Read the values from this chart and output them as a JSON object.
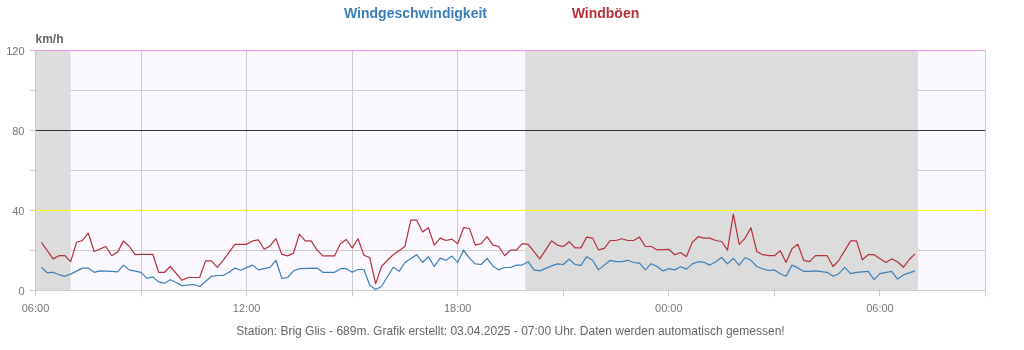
{
  "chart_data": {
    "type": "line",
    "ylabel": "km/h",
    "annotations": [
      "Station: Brig Glis - 689m. Grafik erstellt: 03.04.2025 - 07:00 Uhr. Daten werden automatisch gemessen!"
    ],
    "xlim": [
      "2025-04-02T06:00",
      "2025-04-03T09:00"
    ],
    "xticks": [
      {
        "value": "2025-04-02T06:00",
        "label": "06:00"
      },
      {
        "value": "2025-04-02T09:00",
        "label": null
      },
      {
        "value": "2025-04-02T12:00",
        "label": "12:00"
      },
      {
        "value": "2025-04-02T15:00",
        "label": null
      },
      {
        "value": "2025-04-02T18:00",
        "label": "18:00"
      },
      {
        "value": "2025-04-02T21:00",
        "label": null
      },
      {
        "value": "2025-04-03T00:00",
        "label": "00:00"
      },
      {
        "value": "2025-04-03T03:00",
        "label": null
      },
      {
        "value": "2025-04-03T06:00",
        "label": "06:00"
      },
      {
        "value": "2025-04-03T09:00",
        "label": null
      }
    ],
    "ylim": [
      0,
      120
    ],
    "yticks": [
      0,
      {
        "value": 20,
        "label": null
      },
      40,
      {
        "value": 60,
        "label": null
      },
      80,
      {
        "value": 100,
        "label": null
      },
      120
    ],
    "grid": true,
    "line_style": "solid",
    "bands": [
      {
        "axis": "x",
        "from": "2025-04-02T06:00",
        "to": "2025-04-02T07:00",
        "color": "#dcdcdc"
      },
      {
        "axis": "x",
        "from": "2025-04-02T19:55",
        "to": "2025-04-03T07:05",
        "color": "#dcdcdc"
      }
    ],
    "ref_lines": [
      {
        "axis": "y",
        "value": 40,
        "color": "#ffff00"
      },
      {
        "axis": "y",
        "value": 80,
        "color": "#333333"
      },
      {
        "axis": "y",
        "value": 120,
        "color": "#ff66ff"
      }
    ],
    "series": [
      {
        "name": "Windgeschwindigkeit",
        "color": "#3a7fba",
        "x": [
          "2025-04-02T06:10",
          "2025-04-02T06:20",
          "2025-04-02T06:30",
          "2025-04-02T06:40",
          "2025-04-02T06:50",
          "2025-04-02T07:00",
          "2025-04-02T07:20",
          "2025-04-02T07:30",
          "2025-04-02T07:40",
          "2025-04-02T07:50",
          "2025-04-02T08:10",
          "2025-04-02T08:20",
          "2025-04-02T08:30",
          "2025-04-02T08:40",
          "2025-04-02T09:00",
          "2025-04-02T09:10",
          "2025-04-02T09:20",
          "2025-04-02T09:30",
          "2025-04-02T09:40",
          "2025-04-02T09:50",
          "2025-04-02T10:00",
          "2025-04-02T10:10",
          "2025-04-02T10:30",
          "2025-04-02T10:40",
          "2025-04-02T11:00",
          "2025-04-02T11:10",
          "2025-04-02T11:20",
          "2025-04-02T11:30",
          "2025-04-02T11:40",
          "2025-04-02T11:50",
          "2025-04-02T12:10",
          "2025-04-02T12:20",
          "2025-04-02T12:40",
          "2025-04-02T12:50",
          "2025-04-02T13:00",
          "2025-04-02T13:10",
          "2025-04-02T13:20",
          "2025-04-02T13:30",
          "2025-04-02T14:00",
          "2025-04-02T14:10",
          "2025-04-02T14:30",
          "2025-04-02T14:40",
          "2025-04-02T14:50",
          "2025-04-02T15:00",
          "2025-04-02T15:10",
          "2025-04-02T15:20",
          "2025-04-02T15:30",
          "2025-04-02T15:40",
          "2025-04-02T15:50",
          "2025-04-02T16:10",
          "2025-04-02T16:20",
          "2025-04-02T16:30",
          "2025-04-02T16:50",
          "2025-04-02T17:00",
          "2025-04-02T17:10",
          "2025-04-02T17:20",
          "2025-04-02T17:30",
          "2025-04-02T17:40",
          "2025-04-02T17:50",
          "2025-04-02T18:00",
          "2025-04-02T18:10",
          "2025-04-02T18:20",
          "2025-04-02T18:30",
          "2025-04-02T18:40",
          "2025-04-02T18:50",
          "2025-04-02T19:00",
          "2025-04-02T19:10",
          "2025-04-02T19:20",
          "2025-04-02T19:30",
          "2025-04-02T19:40",
          "2025-04-02T19:50",
          "2025-04-02T20:00",
          "2025-04-02T20:10",
          "2025-04-02T20:20",
          "2025-04-02T20:40",
          "2025-04-02T20:50",
          "2025-04-02T21:00",
          "2025-04-02T21:10",
          "2025-04-02T21:20",
          "2025-04-02T21:30",
          "2025-04-02T21:40",
          "2025-04-02T21:50",
          "2025-04-02T22:00",
          "2025-04-02T22:20",
          "2025-04-02T22:30",
          "2025-04-02T22:40",
          "2025-04-02T22:50",
          "2025-04-02T23:00",
          "2025-04-02T23:10",
          "2025-04-02T23:20",
          "2025-04-02T23:30",
          "2025-04-02T23:40",
          "2025-04-02T23:50",
          "2025-04-03T00:00",
          "2025-04-03T00:10",
          "2025-04-03T00:20",
          "2025-04-03T00:30",
          "2025-04-03T00:40",
          "2025-04-03T00:50",
          "2025-04-03T01:00",
          "2025-04-03T01:10",
          "2025-04-03T01:20",
          "2025-04-03T01:30",
          "2025-04-03T01:40",
          "2025-04-03T01:50",
          "2025-04-03T02:00",
          "2025-04-03T02:10",
          "2025-04-03T02:20",
          "2025-04-03T02:30",
          "2025-04-03T02:40",
          "2025-04-03T02:50",
          "2025-04-03T03:00",
          "2025-04-03T03:10",
          "2025-04-03T03:20",
          "2025-04-03T03:30",
          "2025-04-03T03:40",
          "2025-04-03T03:50",
          "2025-04-03T04:00",
          "2025-04-03T04:10",
          "2025-04-03T04:30",
          "2025-04-03T04:40",
          "2025-04-03T04:50",
          "2025-04-03T05:00",
          "2025-04-03T05:10",
          "2025-04-03T05:20",
          "2025-04-03T05:40",
          "2025-04-03T05:50",
          "2025-04-03T06:00",
          "2025-04-03T06:20",
          "2025-04-03T06:30",
          "2025-04-03T06:40",
          "2025-04-03T07:00"
        ],
        "values": [
          11.6,
          8.9,
          9.1,
          7.9,
          7.1,
          8.2,
          11.2,
          11.2,
          9.1,
          9.8,
          9.6,
          9.3,
          12.7,
          10.3,
          9.1,
          6.1,
          6.8,
          4.3,
          3.6,
          5.4,
          4.0,
          2.4,
          3.0,
          2.0,
          7.1,
          7.5,
          7.5,
          9.1,
          11.2,
          10.1,
          12.7,
          10.3,
          11.6,
          15.1,
          6.1,
          6.5,
          9.8,
          10.9,
          11.2,
          9.1,
          9.1,
          10.9,
          10.9,
          9.1,
          10.5,
          10.5,
          2.6,
          0.5,
          2.0,
          11.6,
          9.6,
          14.0,
          17.9,
          14.0,
          16.9,
          12.0,
          16.2,
          15.1,
          17.2,
          14.1,
          20.2,
          16.2,
          13.3,
          13.0,
          16.1,
          12.3,
          10.3,
          11.5,
          11.5,
          12.7,
          12.7,
          14.4,
          10.3,
          9.8,
          12.3,
          13.3,
          13.0,
          15.7,
          13.0,
          12.6,
          16.9,
          15.1,
          10.3,
          15.1,
          14.4,
          14.4,
          15.1,
          14.0,
          13.7,
          10.3,
          13.4,
          12.0,
          9.8,
          10.9,
          10.3,
          11.9,
          10.7,
          13.3,
          14.4,
          14.1,
          12.7,
          14.4,
          16.5,
          13.3,
          16.1,
          12.7,
          16.5,
          15.1,
          12.0,
          10.9,
          10.0,
          10.3,
          8.4,
          7.1,
          12.7,
          11.3,
          9.6,
          9.6,
          9.8,
          9.1,
          7.1,
          8.4,
          11.6,
          8.4,
          9.1,
          9.6,
          5.4,
          8.4,
          9.6,
          5.7,
          7.8,
          9.8
        ]
      },
      {
        "name": "Windböen",
        "color": "#b5303a",
        "x": [
          "2025-04-02T06:10",
          "2025-04-02T06:30",
          "2025-04-02T06:40",
          "2025-04-02T06:50",
          "2025-04-02T07:00",
          "2025-04-02T07:10",
          "2025-04-02T07:20",
          "2025-04-02T07:30",
          "2025-04-02T07:40",
          "2025-04-02T08:00",
          "2025-04-02T08:10",
          "2025-04-02T08:20",
          "2025-04-02T08:30",
          "2025-04-02T08:40",
          "2025-04-02T08:50",
          "2025-04-02T09:00",
          "2025-04-02T09:20",
          "2025-04-02T09:30",
          "2025-04-02T09:40",
          "2025-04-02T09:50",
          "2025-04-02T10:10",
          "2025-04-02T10:20",
          "2025-04-02T10:40",
          "2025-04-02T10:50",
          "2025-04-02T11:00",
          "2025-04-02T11:10",
          "2025-04-02T11:20",
          "2025-04-02T11:40",
          "2025-04-02T12:00",
          "2025-04-02T12:10",
          "2025-04-02T12:20",
          "2025-04-02T12:30",
          "2025-04-02T12:40",
          "2025-04-02T12:50",
          "2025-04-02T13:00",
          "2025-04-02T13:10",
          "2025-04-02T13:20",
          "2025-04-02T13:30",
          "2025-04-02T13:40",
          "2025-04-02T13:50",
          "2025-04-02T14:00",
          "2025-04-02T14:10",
          "2025-04-02T14:30",
          "2025-04-02T14:40",
          "2025-04-02T14:50",
          "2025-04-02T15:00",
          "2025-04-02T15:10",
          "2025-04-02T15:20",
          "2025-04-02T15:30",
          "2025-04-02T15:40",
          "2025-04-02T15:50",
          "2025-04-02T16:00",
          "2025-04-02T16:10",
          "2025-04-02T16:30",
          "2025-04-02T16:40",
          "2025-04-02T16:50",
          "2025-04-02T17:00",
          "2025-04-02T17:10",
          "2025-04-02T17:20",
          "2025-04-02T17:30",
          "2025-04-02T17:40",
          "2025-04-02T17:50",
          "2025-04-02T18:00",
          "2025-04-02T18:10",
          "2025-04-02T18:20",
          "2025-04-02T18:30",
          "2025-04-02T18:40",
          "2025-04-02T18:50",
          "2025-04-02T19:00",
          "2025-04-02T19:10",
          "2025-04-02T19:20",
          "2025-04-02T19:30",
          "2025-04-02T19:40",
          "2025-04-02T19:50",
          "2025-04-02T20:00",
          "2025-04-02T20:20",
          "2025-04-02T20:40",
          "2025-04-02T20:50",
          "2025-04-02T21:00",
          "2025-04-02T21:10",
          "2025-04-02T21:20",
          "2025-04-02T21:30",
          "2025-04-02T21:40",
          "2025-04-02T21:50",
          "2025-04-02T22:00",
          "2025-04-02T22:10",
          "2025-04-02T22:20",
          "2025-04-02T22:30",
          "2025-04-02T22:40",
          "2025-04-02T22:50",
          "2025-04-02T23:00",
          "2025-04-02T23:10",
          "2025-04-02T23:20",
          "2025-04-02T23:30",
          "2025-04-02T23:40",
          "2025-04-03T00:00",
          "2025-04-03T00:10",
          "2025-04-03T00:20",
          "2025-04-03T00:30",
          "2025-04-03T00:40",
          "2025-04-03T00:50",
          "2025-04-03T01:00",
          "2025-04-03T01:10",
          "2025-04-03T01:20",
          "2025-04-03T01:30",
          "2025-04-03T01:40",
          "2025-04-03T01:50",
          "2025-04-03T02:00",
          "2025-04-03T02:10",
          "2025-04-03T02:20",
          "2025-04-03T02:30",
          "2025-04-03T02:40",
          "2025-04-03T02:50",
          "2025-04-03T03:00",
          "2025-04-03T03:10",
          "2025-04-03T03:20",
          "2025-04-03T03:30",
          "2025-04-03T03:40",
          "2025-04-03T03:50",
          "2025-04-03T04:00",
          "2025-04-03T04:10",
          "2025-04-03T04:30",
          "2025-04-03T04:40",
          "2025-04-03T04:50",
          "2025-04-03T05:10",
          "2025-04-03T05:20",
          "2025-04-03T05:30",
          "2025-04-03T05:40",
          "2025-04-03T05:50",
          "2025-04-03T06:10",
          "2025-04-03T06:20",
          "2025-04-03T06:30",
          "2025-04-03T06:40",
          "2025-04-03T06:50",
          "2025-04-03T07:00"
        ],
        "values": [
          24.1,
          15.8,
          17.4,
          17.4,
          14.4,
          24.1,
          25.0,
          28.7,
          19.5,
          22.0,
          17.4,
          19.2,
          24.8,
          22.0,
          17.9,
          18.1,
          18.1,
          9.1,
          9.1,
          12.0,
          5.1,
          6.5,
          6.5,
          14.8,
          14.8,
          11.6,
          15.1,
          23.1,
          23.1,
          24.8,
          25.3,
          20.6,
          22.3,
          25.9,
          18.1,
          17.3,
          18.7,
          28.2,
          24.8,
          24.8,
          20.3,
          17.3,
          17.3,
          23.4,
          25.5,
          21.3,
          25.9,
          17.6,
          16.5,
          3.3,
          12.0,
          15.1,
          17.9,
          22.0,
          35.2,
          35.2,
          29.2,
          31.4,
          22.7,
          26.2,
          25.0,
          25.7,
          23.4,
          31.4,
          31.0,
          22.7,
          23.4,
          26.9,
          22.7,
          22.0,
          17.4,
          20.2,
          20.2,
          23.4,
          23.1,
          15.8,
          24.8,
          22.7,
          22.0,
          24.4,
          21.3,
          21.3,
          26.7,
          26.2,
          20.3,
          21.1,
          25.0,
          25.0,
          25.9,
          25.0,
          25.0,
          26.7,
          22.0,
          22.0,
          20.3,
          20.6,
          17.9,
          19.0,
          16.9,
          24.1,
          26.9,
          26.2,
          26.2,
          25.0,
          24.5,
          20.2,
          38.2,
          23.1,
          26.2,
          31.4,
          19.5,
          17.9,
          17.4,
          17.4,
          19.9,
          14.0,
          20.9,
          23.1,
          15.1,
          14.4,
          17.4,
          17.4,
          12.0,
          15.1,
          24.8,
          24.8,
          15.4,
          17.9,
          17.9,
          14.0,
          15.8,
          14.4,
          11.6,
          15.5,
          18.3
        ]
      }
    ]
  }
}
